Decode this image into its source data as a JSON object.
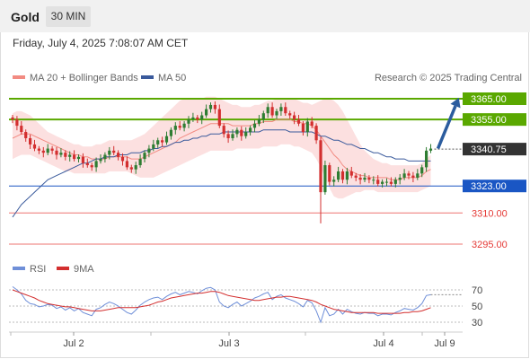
{
  "header": {
    "instrument": "Gold",
    "timeframe": "30 MIN"
  },
  "datetime": "Friday, July 4, 2025 7:08:07 AM CET",
  "legend": {
    "bollinger": "MA 20 + Bollinger Bands",
    "ma50": "MA 50",
    "credit": "Research © 2025 Trading Central",
    "rsi": "RSI",
    "rsi_ma": "9MA"
  },
  "colors": {
    "up": "#2e7d32",
    "down": "#d32f2f",
    "resistance": "#5aa800",
    "pivot": "#1a56c4",
    "support": "#e53935",
    "band": "#fbd3d3",
    "ma20": "#f28b82",
    "ma50": "#3a5a9c",
    "rsi": "#6f8fd8",
    "rsi_ma": "#d32f2f",
    "current": "#333333",
    "arrow": "#2b5c9e"
  },
  "chart_data": [
    {
      "type": "candlestick",
      "title": "Gold",
      "timeframe": "30 MIN",
      "x_ticks": [
        "Jul 2",
        "Jul 3",
        "Jul 4",
        "Jul 9"
      ],
      "ylim": [
        3290,
        3370
      ],
      "levels": [
        {
          "value": 3365.0,
          "label": "3365.00",
          "kind": "resistance"
        },
        {
          "value": 3355.0,
          "label": "3355.00",
          "kind": "resistance"
        },
        {
          "value": 3340.75,
          "label": "3340.75",
          "kind": "current"
        },
        {
          "value": 3323.0,
          "label": "3323.00",
          "kind": "pivot"
        },
        {
          "value": 3310.0,
          "label": "3310.00",
          "kind": "support"
        },
        {
          "value": 3295.0,
          "label": "3295.00",
          "kind": "support"
        }
      ],
      "close": [
        3355,
        3352,
        3349,
        3346,
        3343,
        3341,
        3340,
        3339,
        3341,
        3340,
        3338,
        3339,
        3337,
        3338,
        3336,
        3337,
        3334,
        3333,
        3332,
        3335,
        3336,
        3338,
        3340,
        3339,
        3337,
        3335,
        3332,
        3331,
        3333,
        3336,
        3339,
        3341,
        3343,
        3345,
        3344,
        3347,
        3350,
        3352,
        3351,
        3353,
        3355,
        3356,
        3355,
        3357,
        3360,
        3362,
        3360,
        3352,
        3348,
        3346,
        3348,
        3350,
        3347,
        3349,
        3351,
        3353,
        3355,
        3358,
        3361,
        3357,
        3359,
        3361,
        3358,
        3357,
        3355,
        3353,
        3349,
        3354,
        3352,
        3345,
        3320,
        3333,
        3325,
        3326,
        3330,
        3326,
        3330,
        3328,
        3327,
        3326,
        3327,
        3326,
        3326,
        3324,
        3325,
        3325,
        3324,
        3326,
        3327,
        3329,
        3328,
        3327,
        3329,
        3332,
        3340,
        3341
      ],
      "ma20": [
        3346,
        3347,
        3348,
        3348,
        3348,
        3347,
        3346,
        3345,
        3344,
        3343,
        3342,
        3341,
        3340,
        3339,
        3338,
        3338,
        3337,
        3337,
        3336,
        3336,
        3336,
        3336,
        3337,
        3337,
        3337,
        3337,
        3337,
        3336,
        3336,
        3336,
        3337,
        3338,
        3339,
        3340,
        3341,
        3342,
        3343,
        3344,
        3346,
        3347,
        3348,
        3349,
        3350,
        3351,
        3352,
        3353,
        3353,
        3353,
        3353,
        3353,
        3352,
        3352,
        3352,
        3352,
        3352,
        3353,
        3353,
        3354,
        3354,
        3354,
        3355,
        3355,
        3355,
        3355,
        3354,
        3354,
        3353,
        3353,
        3352,
        3350,
        3347,
        3344,
        3341,
        3338,
        3336,
        3333,
        3331,
        3330,
        3329,
        3328,
        3328,
        3327,
        3327,
        3327,
        3327,
        3327,
        3326,
        3326,
        3326,
        3327,
        3327,
        3327,
        3327,
        3328,
        3330,
        3331
      ],
      "ma50": [
        3308,
        3311,
        3314,
        3316,
        3318,
        3320,
        3322,
        3324,
        3326,
        3327,
        3328,
        3329,
        3330,
        3331,
        3332,
        3333,
        3334,
        3334,
        3335,
        3336,
        3336,
        3337,
        3337,
        3337,
        3338,
        3338,
        3338,
        3339,
        3339,
        3339,
        3340,
        3340,
        3341,
        3341,
        3342,
        3342,
        3343,
        3344,
        3344,
        3345,
        3345,
        3346,
        3346,
        3347,
        3347,
        3348,
        3348,
        3348,
        3349,
        3349,
        3349,
        3349,
        3349,
        3349,
        3349,
        3349,
        3349,
        3350,
        3350,
        3350,
        3350,
        3350,
        3350,
        3349,
        3349,
        3349,
        3349,
        3349,
        3349,
        3348,
        3347,
        3347,
        3346,
        3345,
        3345,
        3344,
        3343,
        3343,
        3342,
        3341,
        3341,
        3340,
        3339,
        3339,
        3338,
        3337,
        3337,
        3336,
        3336,
        3336,
        3335,
        3335,
        3335,
        3335,
        3335,
        3335
      ],
      "bollinger_upper": [
        3358,
        3359,
        3359,
        3358,
        3357,
        3355,
        3353,
        3351,
        3349,
        3348,
        3347,
        3346,
        3345,
        3344,
        3343,
        3343,
        3342,
        3342,
        3342,
        3343,
        3343,
        3344,
        3345,
        3345,
        3345,
        3345,
        3345,
        3345,
        3346,
        3347,
        3348,
        3350,
        3352,
        3354,
        3356,
        3358,
        3360,
        3362,
        3364,
        3365,
        3365,
        3365,
        3365,
        3365,
        3366,
        3366,
        3366,
        3365,
        3364,
        3363,
        3362,
        3362,
        3361,
        3361,
        3361,
        3362,
        3362,
        3363,
        3364,
        3364,
        3365,
        3365,
        3365,
        3365,
        3365,
        3364,
        3363,
        3363,
        3362,
        3363,
        3364,
        3365,
        3365,
        3364,
        3362,
        3359,
        3355,
        3351,
        3347,
        3343,
        3340,
        3338,
        3336,
        3335,
        3334,
        3334,
        3333,
        3333,
        3333,
        3333,
        3333,
        3333,
        3333,
        3334,
        3336,
        3338
      ],
      "bollinger_lower": [
        3336,
        3337,
        3338,
        3338,
        3338,
        3337,
        3336,
        3335,
        3334,
        3333,
        3332,
        3331,
        3330,
        3330,
        3329,
        3329,
        3329,
        3329,
        3329,
        3329,
        3329,
        3329,
        3330,
        3330,
        3330,
        3330,
        3330,
        3329,
        3328,
        3327,
        3327,
        3327,
        3327,
        3328,
        3329,
        3330,
        3331,
        3332,
        3333,
        3334,
        3335,
        3336,
        3337,
        3338,
        3339,
        3340,
        3340,
        3340,
        3340,
        3340,
        3340,
        3341,
        3341,
        3341,
        3341,
        3341,
        3341,
        3342,
        3342,
        3342,
        3342,
        3343,
        3343,
        3343,
        3342,
        3342,
        3341,
        3340,
        3339,
        3336,
        3332,
        3327,
        3322,
        3318,
        3317,
        3317,
        3318,
        3319,
        3320,
        3320,
        3321,
        3321,
        3321,
        3320,
        3320,
        3320,
        3320,
        3320,
        3320,
        3320,
        3320,
        3320,
        3320,
        3321,
        3322,
        3323
      ]
    },
    {
      "type": "line",
      "title": "RSI",
      "ylim": [
        20,
        80
      ],
      "y_ticks": [
        70,
        50,
        30
      ],
      "series": [
        {
          "name": "RSI",
          "values": [
            74,
            70,
            65,
            57,
            53,
            52,
            49,
            50,
            52,
            51,
            47,
            49,
            45,
            48,
            44,
            47,
            42,
            40,
            38,
            46,
            48,
            52,
            55,
            53,
            50,
            46,
            42,
            40,
            45,
            51,
            55,
            58,
            60,
            61,
            58,
            62,
            65,
            67,
            64,
            66,
            68,
            67,
            65,
            69,
            72,
            73,
            70,
            55,
            50,
            48,
            52,
            55,
            50,
            53,
            56,
            60,
            62,
            65,
            67,
            58,
            62,
            64,
            60,
            58,
            56,
            53,
            49,
            57,
            54,
            44,
            30,
            48,
            38,
            40,
            46,
            40,
            46,
            43,
            41,
            40,
            42,
            41,
            41,
            38,
            40,
            40,
            39,
            42,
            44,
            47,
            46,
            45,
            48,
            53,
            63,
            64
          ]
        },
        {
          "name": "9MA",
          "values": [
            70,
            68,
            66,
            64,
            62,
            60,
            57,
            55,
            53,
            52,
            51,
            50,
            49,
            49,
            48,
            47,
            46,
            45,
            44,
            44,
            44,
            45,
            46,
            47,
            48,
            48,
            48,
            48,
            48,
            49,
            50,
            51,
            53,
            55,
            56,
            58,
            60,
            61,
            62,
            63,
            64,
            65,
            66,
            66,
            67,
            68,
            68,
            67,
            65,
            63,
            62,
            61,
            60,
            59,
            58,
            57,
            57,
            58,
            59,
            60,
            61,
            61,
            62,
            62,
            61,
            60,
            59,
            58,
            57,
            55,
            52,
            50,
            48,
            46,
            45,
            44,
            43,
            42,
            42,
            42,
            42,
            42,
            42,
            41,
            41,
            41,
            41,
            41,
            41,
            42,
            42,
            43,
            43,
            44,
            46,
            48
          ]
        }
      ]
    }
  ]
}
